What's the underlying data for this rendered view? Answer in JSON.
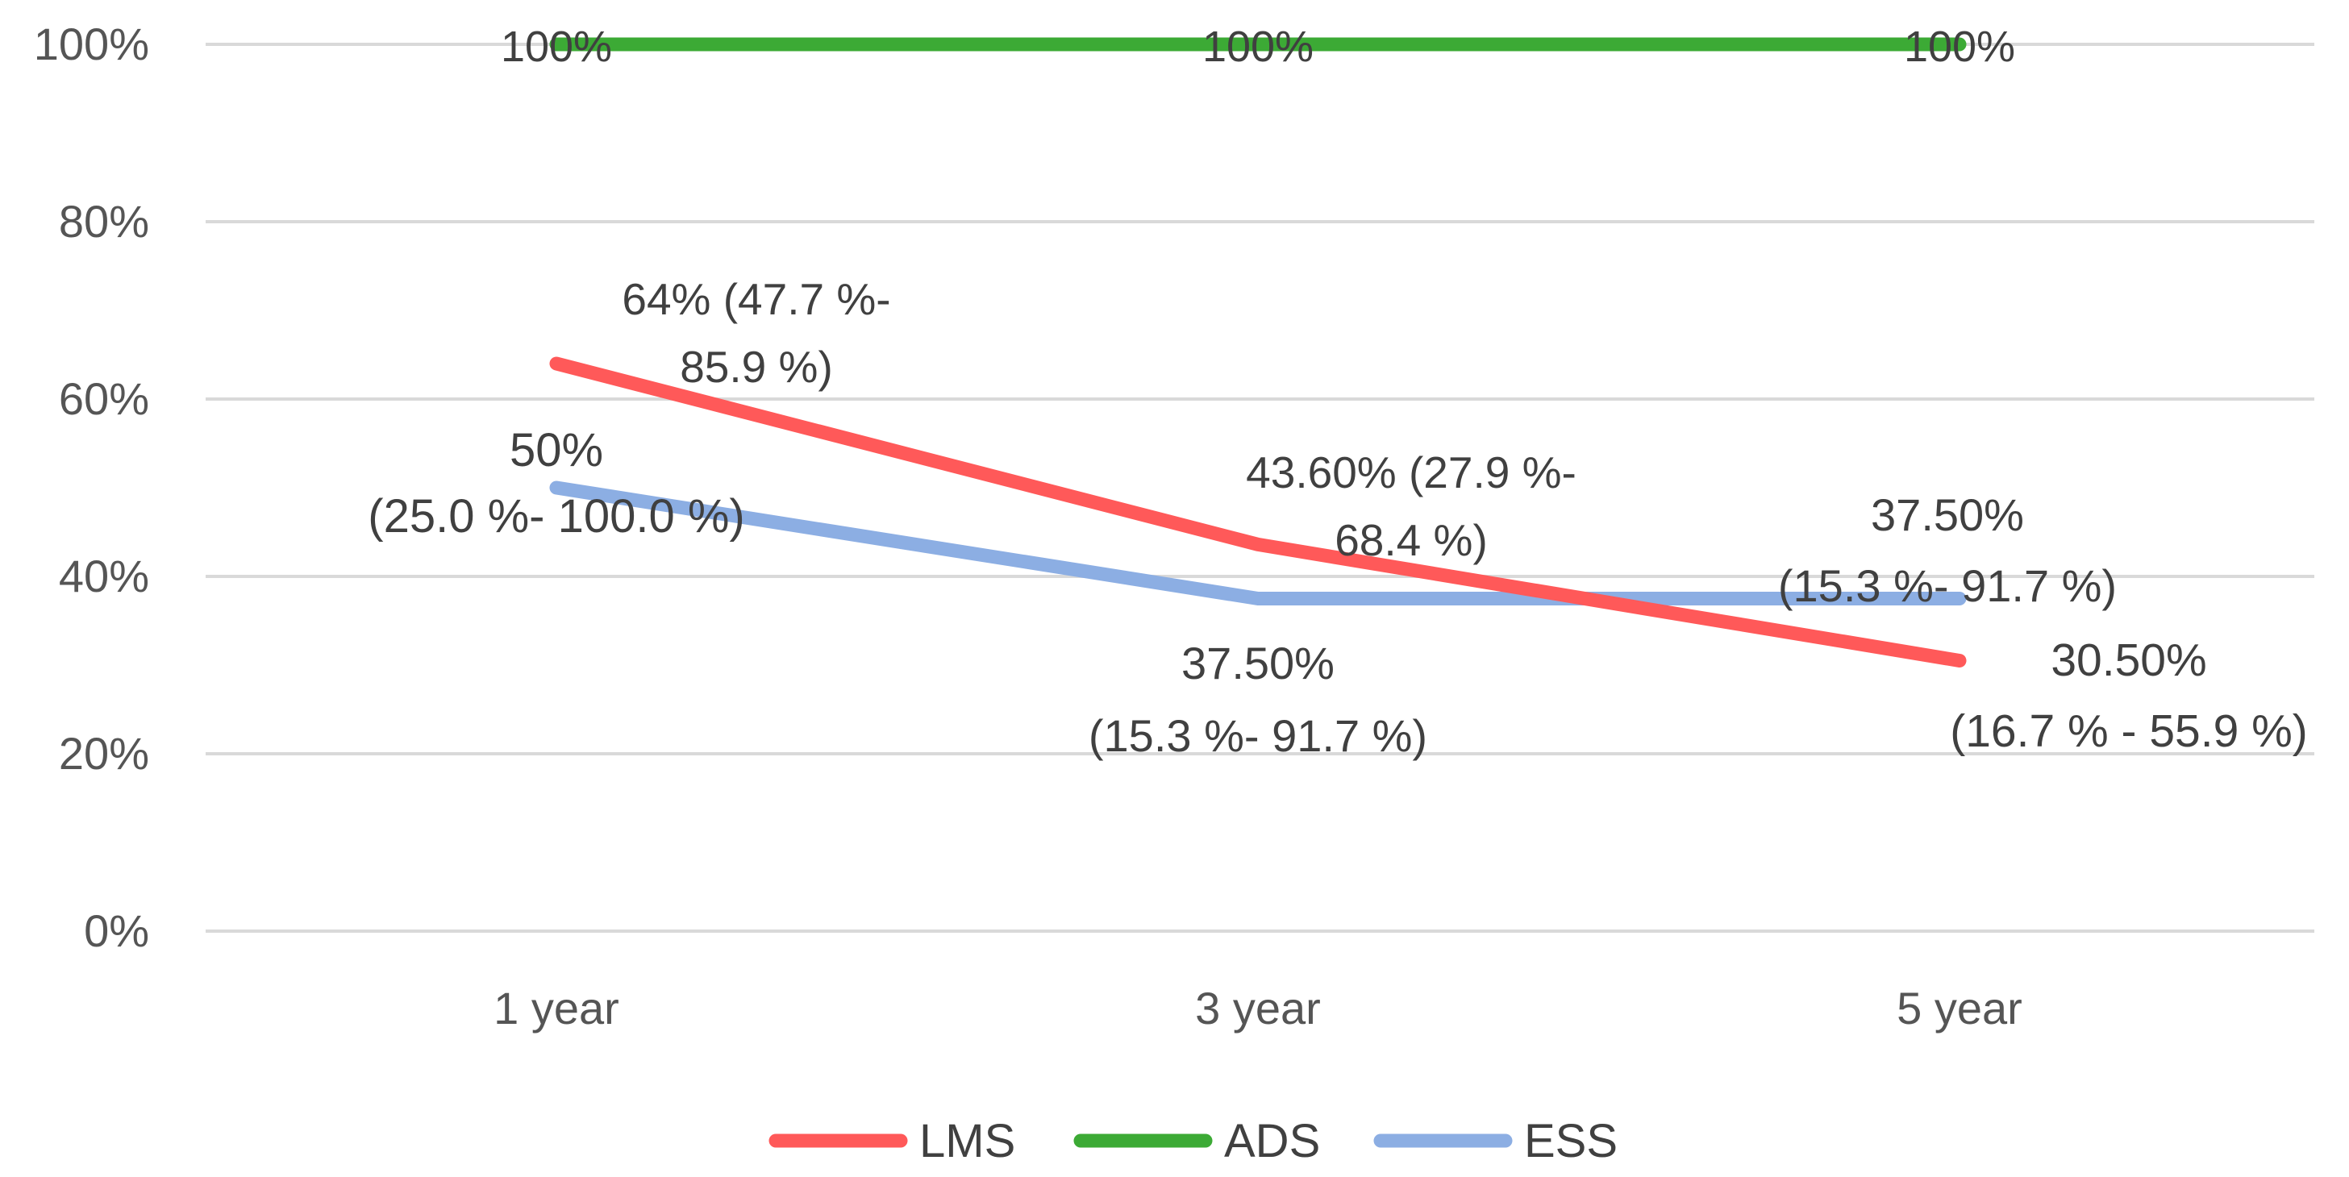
{
  "chart_data": {
    "type": "line",
    "title": "",
    "xlabel": "",
    "ylabel": "",
    "categories": [
      "1 year",
      "3 year",
      "5 year"
    ],
    "ylim": [
      0,
      100
    ],
    "yticks": [
      "0%",
      "20%",
      "40%",
      "60%",
      "80%",
      "100%"
    ],
    "grid": true,
    "legend_position": "bottom",
    "series": [
      {
        "name": "LMS",
        "color": "#ff5959",
        "values": [
          64,
          43.6,
          30.5
        ],
        "labels": [
          [
            "64% (47.7 %-",
            "85.9 %)"
          ],
          [
            "43.60% (27.9 %-",
            "68.4 %)"
          ],
          [
            "30.50%",
            "(16.7 % - 55.9 %)"
          ]
        ]
      },
      {
        "name": "ADS",
        "color": "#3caa35",
        "values": [
          100,
          100,
          100
        ],
        "labels": [
          [
            "100%"
          ],
          [
            "100%"
          ],
          [
            "100%"
          ]
        ]
      },
      {
        "name": "ESS",
        "color": "#8caee3",
        "values": [
          50,
          37.5,
          37.5
        ],
        "labels": [
          [
            "50%",
            "(25.0 %- 100.0 %)"
          ],
          [
            "37.50%",
            "(15.3 %- 91.7 %)"
          ],
          [
            "37.50%",
            "(15.3 %- 91.7 %)"
          ]
        ]
      }
    ]
  }
}
